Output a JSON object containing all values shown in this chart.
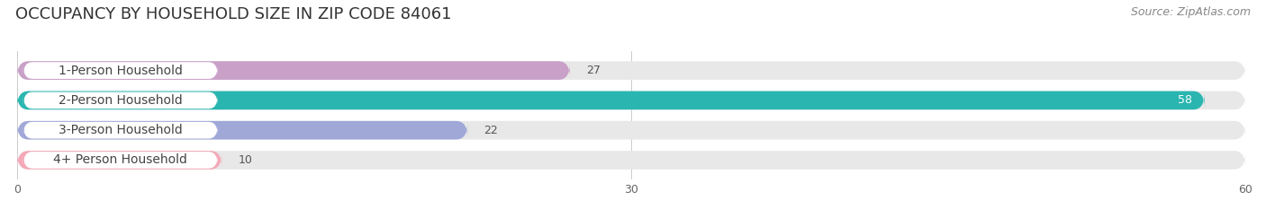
{
  "title": "OCCUPANCY BY HOUSEHOLD SIZE IN ZIP CODE 84061",
  "source": "Source: ZipAtlas.com",
  "categories": [
    "1-Person Household",
    "2-Person Household",
    "3-Person Household",
    "4+ Person Household"
  ],
  "values": [
    27,
    58,
    22,
    10
  ],
  "bar_colors": [
    "#c9a0c8",
    "#2ab5b0",
    "#a0a8d8",
    "#f4a8b8"
  ],
  "bar_background_color": "#e8e8e8",
  "xlim": [
    0,
    60
  ],
  "xticks": [
    0,
    30,
    60
  ],
  "title_fontsize": 13,
  "source_fontsize": 9,
  "label_fontsize": 10,
  "value_fontsize": 9,
  "bar_height": 0.62,
  "figsize": [
    14.06,
    2.33
  ],
  "dpi": 100,
  "background_color": "#ffffff",
  "label_box_color": "#ffffff",
  "label_text_color": "#444444"
}
